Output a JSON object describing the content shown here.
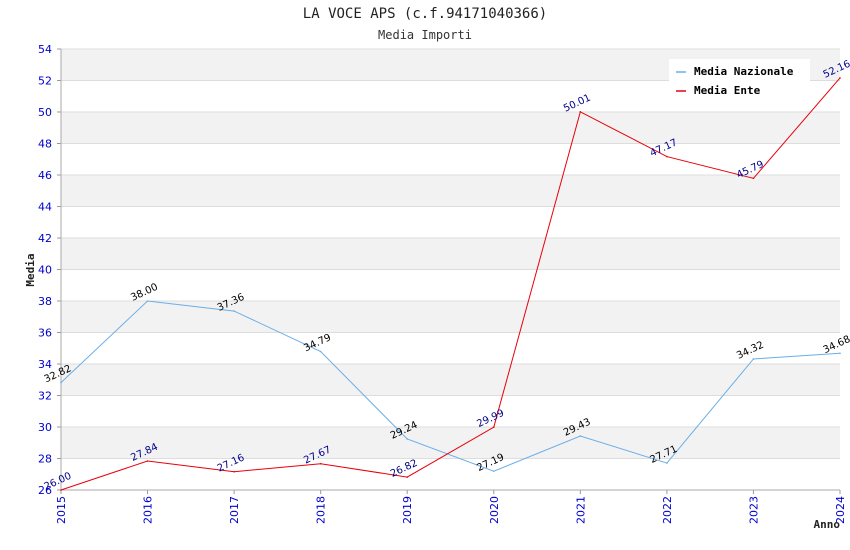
{
  "chart_data": {
    "type": "line",
    "title": "LA VOCE APS (c.f.94171040366)",
    "subtitle": "Media Importi",
    "ylabel": "Media",
    "xlabel": "Anno",
    "x": [
      "2015",
      "2016",
      "2017",
      "2018",
      "2019",
      "2020",
      "2021",
      "2022",
      "2023",
      "2024"
    ],
    "ylim": [
      26,
      54
    ],
    "yticks": [
      26,
      28,
      30,
      32,
      34,
      36,
      38,
      40,
      42,
      44,
      46,
      48,
      50,
      52,
      54
    ],
    "grid": true,
    "legend_position": "top-right",
    "series": [
      {
        "name": "Media Nazionale",
        "color": "#6aaee8",
        "label_color": "#000000",
        "values": [
          32.82,
          38.0,
          37.36,
          34.79,
          29.24,
          27.19,
          29.43,
          27.71,
          34.32,
          34.68
        ],
        "labels": [
          "32.82",
          "38.00",
          "37.36",
          "34.79",
          "29.24",
          "27.19",
          "29.43",
          "27.71",
          "34.32",
          "34.68"
        ]
      },
      {
        "name": "Media Ente",
        "color": "#e8000b",
        "label_color": "#00008b",
        "values": [
          26.0,
          27.84,
          27.16,
          27.67,
          26.82,
          29.99,
          50.01,
          47.17,
          45.79,
          52.16
        ],
        "labels": [
          "26.00",
          "27.84",
          "27.16",
          "27.67",
          "26.82",
          "29.99",
          "50.01",
          "47.17",
          "45.79",
          "52.16"
        ]
      }
    ]
  }
}
